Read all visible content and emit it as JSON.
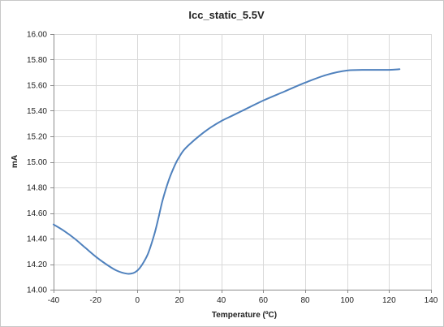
{
  "chart_data": {
    "type": "line",
    "title": "Icc_static_5.5V",
    "xlabel": "Temperature (ºC)",
    "ylabel": "mA",
    "xlim": [
      -40,
      140
    ],
    "ylim": [
      14.0,
      16.0
    ],
    "x_ticks": [
      "-40",
      "-20",
      "0",
      "20",
      "40",
      "60",
      "80",
      "100",
      "120",
      "140"
    ],
    "y_ticks": [
      "14.00",
      "14.20",
      "14.40",
      "14.60",
      "14.80",
      "15.00",
      "15.20",
      "15.40",
      "15.60",
      "15.80",
      "16.00"
    ],
    "grid": true,
    "legend": "none",
    "series": [
      {
        "color": "#4f81bd",
        "x": [
          -40,
          -35,
          -30,
          -25,
          -20,
          -15,
          -10,
          -5,
          -2,
          0,
          2,
          5,
          8,
          10,
          12,
          15,
          18,
          20,
          22,
          25,
          30,
          35,
          40,
          45,
          50,
          60,
          70,
          80,
          90,
          100,
          110,
          120,
          125
        ],
        "y": [
          14.51,
          14.46,
          14.4,
          14.33,
          14.26,
          14.2,
          14.15,
          14.125,
          14.13,
          14.15,
          14.19,
          14.28,
          14.43,
          14.56,
          14.7,
          14.86,
          14.98,
          15.04,
          15.09,
          15.14,
          15.21,
          15.27,
          15.32,
          15.36,
          15.4,
          15.48,
          15.55,
          15.62,
          15.68,
          15.715,
          15.72,
          15.72,
          15.725
        ]
      }
    ]
  }
}
